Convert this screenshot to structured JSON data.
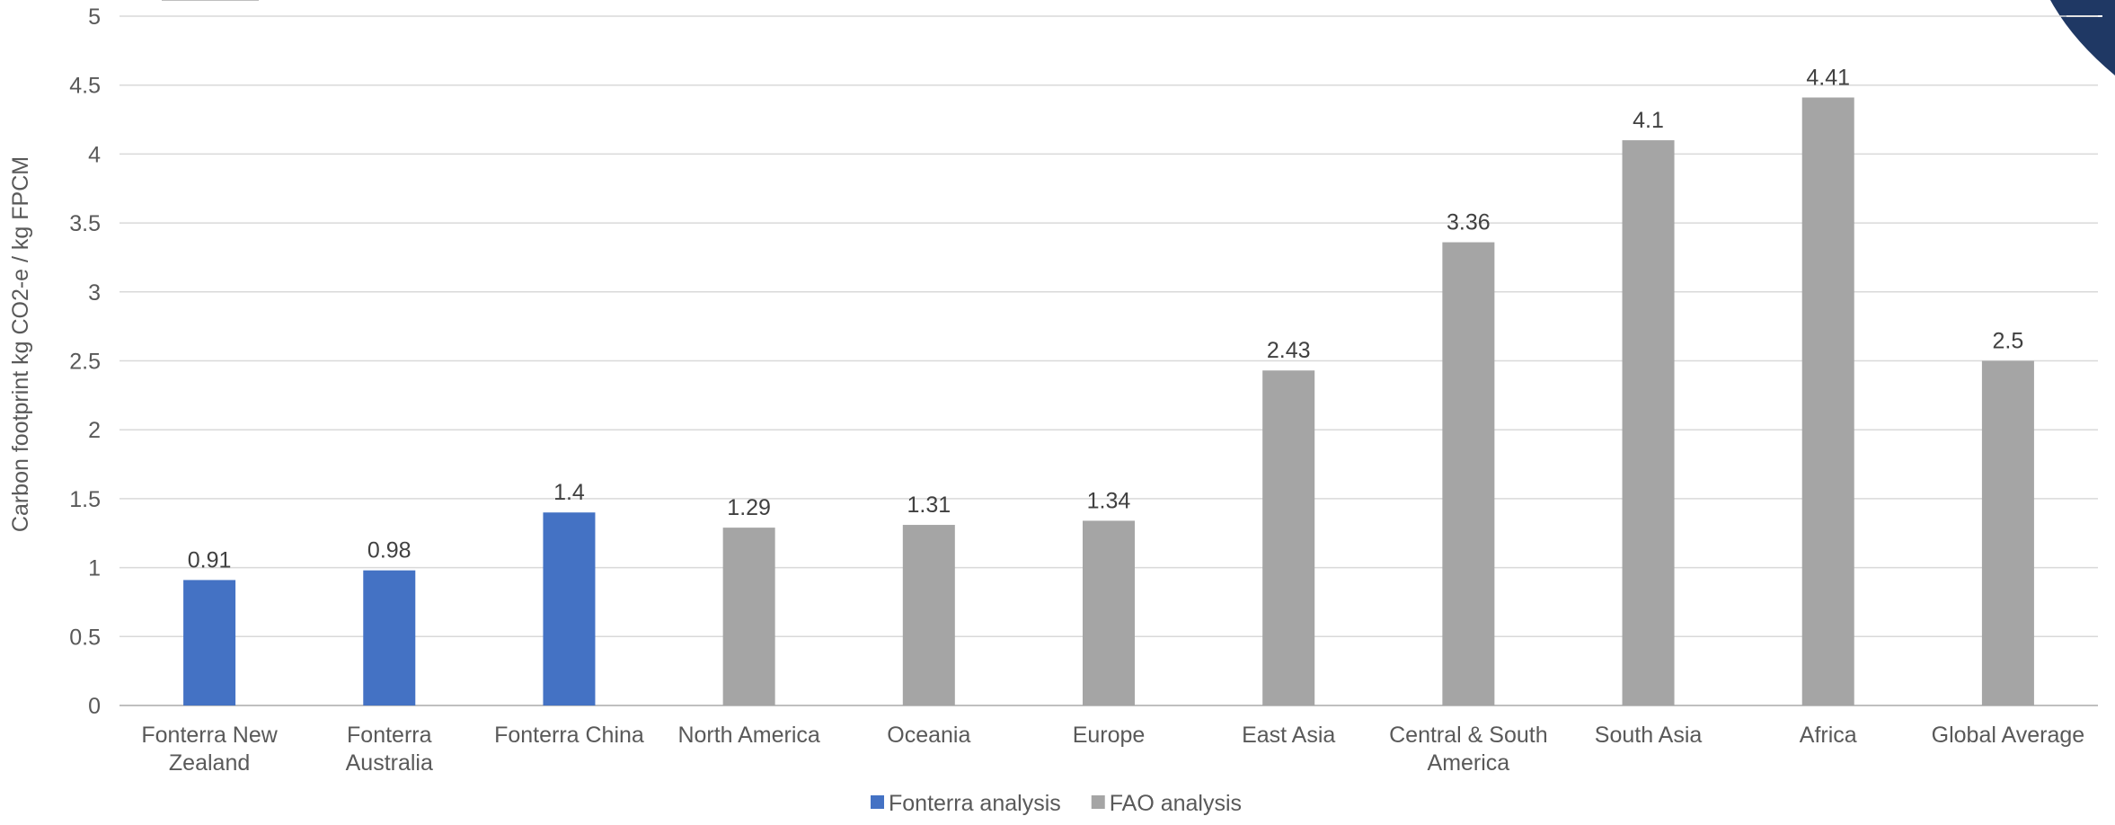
{
  "chart_data": {
    "type": "bar",
    "ylabel": "Carbon footprint kg CO2-e / kg FPCM",
    "ylim": [
      0,
      5
    ],
    "yticks": [
      "0",
      "0.5",
      "1",
      "1.5",
      "2",
      "2.5",
      "3",
      "3.5",
      "4",
      "4.5",
      "5"
    ],
    "grid": true,
    "legend_position": "bottom",
    "categories": [
      [
        "Fonterra New",
        "Zealand"
      ],
      [
        "Fonterra",
        "Australia"
      ],
      [
        "Fonterra China"
      ],
      [
        "North America"
      ],
      [
        "Oceania"
      ],
      [
        "Europe"
      ],
      [
        "East Asia"
      ],
      [
        "Central & South",
        "America"
      ],
      [
        "South Asia"
      ],
      [
        "Africa"
      ],
      [
        "Global Average"
      ]
    ],
    "series": [
      {
        "name": "Fonterra analysis",
        "color": "#4472C4",
        "values": [
          0.91,
          0.98,
          1.4,
          null,
          null,
          null,
          null,
          null,
          null,
          null,
          null
        ],
        "labels": [
          "0.91",
          "0.98",
          "1.4",
          null,
          null,
          null,
          null,
          null,
          null,
          null,
          null
        ]
      },
      {
        "name": "FAO analysis",
        "color": "#A5A5A5",
        "values": [
          null,
          null,
          null,
          1.29,
          1.31,
          1.34,
          2.43,
          3.36,
          4.1,
          4.41,
          2.5
        ],
        "labels": [
          null,
          null,
          null,
          "1.29",
          "1.31",
          "1.34",
          "2.43",
          "3.36",
          "4.1",
          "4.41",
          "2.5"
        ]
      }
    ]
  },
  "decoration": {
    "corner_color": "#1F3864"
  }
}
